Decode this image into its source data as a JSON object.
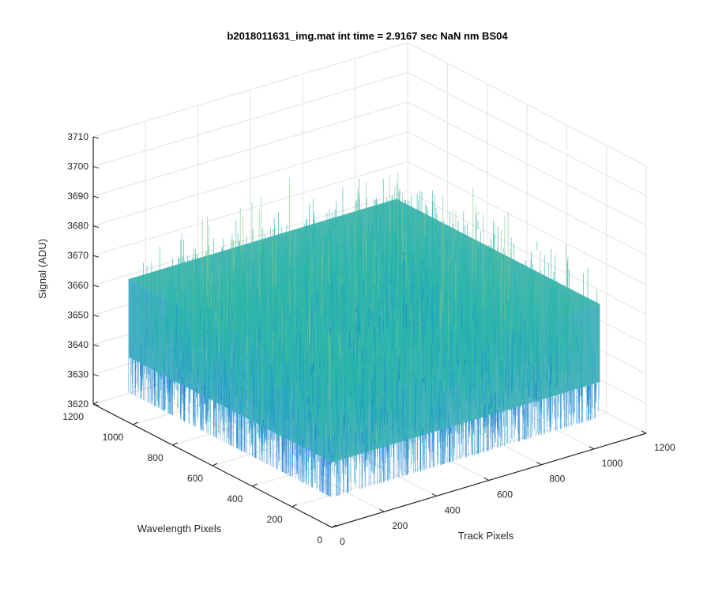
{
  "chart_data": {
    "type": "surface",
    "title": "b2018011631_img.mat int time = 2.9167 sec  NaN nm BS04",
    "xlabel": "Track Pixels",
    "ylabel": "Wavelength Pixels",
    "zlabel": "Signal (ADU)",
    "x_ticks": [
      "0",
      "200",
      "400",
      "600",
      "800",
      "1000",
      "1200"
    ],
    "y_ticks": [
      "0",
      "200",
      "400",
      "600",
      "800",
      "1000",
      "1200"
    ],
    "z_ticks": [
      "3620",
      "3630",
      "3640",
      "3650",
      "3660",
      "3670",
      "3680",
      "3690",
      "3700",
      "3710"
    ],
    "xlim": [
      0,
      1200
    ],
    "ylim": [
      0,
      1200
    ],
    "zlim": [
      3620,
      3710
    ],
    "x_extent": [
      1,
      1024
    ],
    "y_extent": [
      1,
      1024
    ],
    "z_mean": 3655,
    "z_spread": [
      3630,
      3705
    ],
    "grid": true,
    "colormap": "parula",
    "colors": {
      "low": "#0f6fd6",
      "mid_low": "#1a9bc9",
      "mid": "#2cb6a9",
      "mid_high": "#7fc68a",
      "high": "#e8c84a"
    }
  }
}
